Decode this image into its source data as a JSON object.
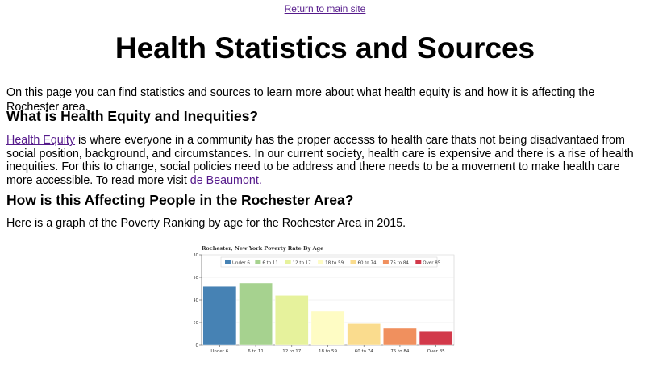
{
  "nav": {
    "return_link": "Return to main site"
  },
  "page_title": "Health Statistics and Sources",
  "intro": "On this page you can find statistics and sources to learn more about what health equity is and how it is affecting the Rochester area.",
  "section_equity": {
    "heading": "What is Health Equity and Inequities?",
    "link_text": "Health Equity",
    "body": " is where everyone in a community has the proper accesss to health care thats not being disadvantaed from social position, background, and circumstances. In our current society, health care is expensive and there is a rise of health inequities. For this to change, social policies need to be address and there needs to be a movement to make health care more accessible. To read more visit ",
    "link2_text": "de Beaumont."
  },
  "section_rochester": {
    "heading": "How is this Affecting People in the Rochester Area?",
    "body": "Here is a graph of the Poverty Ranking by age for the Rochester Area in 2015."
  },
  "chart_data": {
    "type": "bar",
    "title": "Rochester, New York Poverty Rate By Age",
    "categories": [
      "Under 6",
      "6 to 11",
      "12 to 17",
      "18 to 59",
      "60 to 74",
      "75 to 84",
      "Over 85"
    ],
    "values": [
      52,
      55,
      44,
      30,
      19,
      15,
      12
    ],
    "colors": [
      "#4682b4",
      "#a6d28f",
      "#e6f29c",
      "#fefcc4",
      "#fadc8e",
      "#f0905e",
      "#d2394a"
    ],
    "yticks": [
      "0",
      "20",
      "40",
      "60",
      "80"
    ],
    "ylim": [
      0,
      80
    ],
    "xlabel": "",
    "ylabel": "",
    "legend_position": "top",
    "grid": true
  }
}
